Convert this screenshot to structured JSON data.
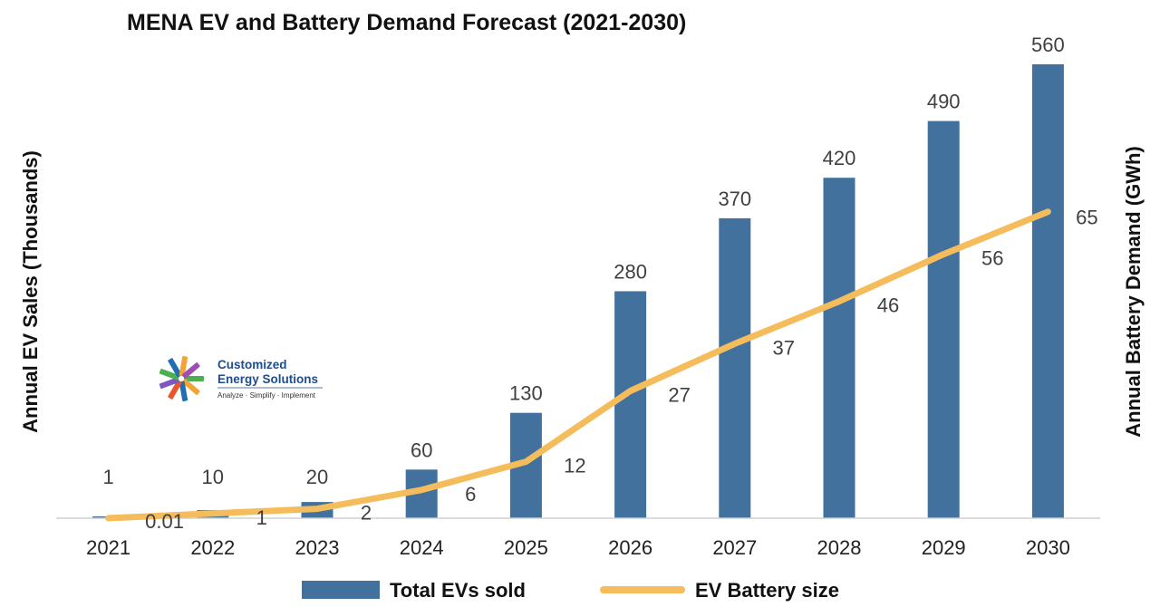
{
  "chart_data": {
    "type": "bar",
    "title": "MENA EV and Battery Demand Forecast (2021-2030)",
    "ylabel": "Annual EV Sales (Thousands)",
    "y2label": "Annual Battery Demand (GWh)",
    "categories": [
      "2021",
      "2022",
      "2023",
      "2024",
      "2025",
      "2026",
      "2027",
      "2028",
      "2029",
      "2030"
    ],
    "ylim": [
      0,
      570
    ],
    "y2lim": [
      0,
      98
    ],
    "grid": false,
    "legend_position": "bottom",
    "series": [
      {
        "name": "Total EVs sold",
        "type": "bar",
        "axis": "left",
        "color": "#41719c",
        "values": [
          1,
          10,
          20,
          60,
          130,
          280,
          370,
          420,
          490,
          560
        ],
        "labels": [
          "1",
          "10",
          "20",
          "60",
          "130",
          "280",
          "370",
          "420",
          "490",
          "560"
        ]
      },
      {
        "name": "EV Battery size",
        "type": "line",
        "axis": "right",
        "color": "#f5bc5c",
        "values": [
          0.01,
          1,
          2,
          6,
          12,
          27,
          37,
          46,
          56,
          65
        ],
        "labels": [
          "0.01",
          "1",
          "2",
          "6",
          "12",
          "27",
          "37",
          "46",
          "56",
          "65"
        ]
      }
    ]
  },
  "logo": {
    "line1": "Customized",
    "line2": "Energy Solutions",
    "tagline": "Analyze · Simplify · Implement"
  }
}
